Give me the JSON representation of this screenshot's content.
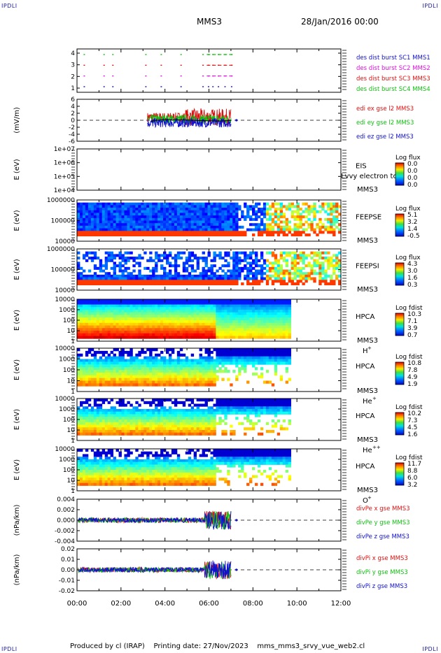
{
  "corners": {
    "tl": "IPDLI",
    "tr": "IPDLI",
    "bl": "IPDLI",
    "br": "IPDLI"
  },
  "header": {
    "spacecraft": "MMS3",
    "date": "28/Jan/2016 00:00"
  },
  "footer": {
    "produced": "Produced by cl (IRAP)",
    "printed": "Printing date: 27/Nov/2023",
    "file": "mms_mms3_srvy_vue_web2.cl"
  },
  "colors": {
    "red": "#e01010",
    "green": "#10c010",
    "blue": "#1010d0",
    "magenta": "#e010e0"
  },
  "chart_data": [
    {
      "type": "scatter",
      "panel": "burst-availability",
      "yticks": [
        "4",
        "3",
        "2",
        "1"
      ],
      "legend": [
        {
          "text": "des dist burst SC1 MMS1",
          "color": "#1010d0"
        },
        {
          "text": "des dist burst SC2 MMS2",
          "color": "#e010e0"
        },
        {
          "text": "des dist burst SC3 MMS3",
          "color": "#e01010"
        },
        {
          "text": "des dist burst SC4 MMS4",
          "color": "#10c010"
        }
      ]
    },
    {
      "type": "line",
      "panel": "edi-e-field",
      "ylabel": "(mV/m)",
      "yticks": [
        "6",
        "4",
        "2",
        "0",
        "-2",
        "-4",
        "-6"
      ],
      "ylim": [
        -6,
        6
      ],
      "legend": [
        {
          "text": "edi ex gse l2 MMS3",
          "color": "#e01010"
        },
        {
          "text": "edi ey gse l2 MMS3",
          "color": "#10c010"
        },
        {
          "text": "edi ez gse l2 MMS3",
          "color": "#1010d0"
        }
      ]
    },
    {
      "type": "heatmap",
      "panel": "eis",
      "ylabel": "E (eV)",
      "yticks": [
        "1e+07",
        "1e+06",
        "1e+05",
        "1e+04"
      ],
      "inst": [
        "EIS",
        "MMS3"
      ],
      "overlay": "Lvvy electron to",
      "cbar_title": "Log flux",
      "cbar_ticks": [
        "0.0",
        "0.0",
        "0.0",
        "0.0"
      ]
    },
    {
      "type": "heatmap",
      "panel": "feeps-electron",
      "ylabel": "E (eV)",
      "yticks": [
        "1000000",
        "100000",
        "10000"
      ],
      "inst": [
        "FEEPSE",
        "MMS3"
      ],
      "cbar_title": "Log flux",
      "cbar_ticks": [
        "5.1",
        "3.2",
        "1.4",
        "-0.5"
      ]
    },
    {
      "type": "heatmap",
      "panel": "feeps-ion",
      "ylabel": "E (eV)",
      "yticks": [
        "1000000",
        "100000",
        "10000"
      ],
      "inst": [
        "FEEPSI",
        "MMS3"
      ],
      "cbar_title": "Log flux",
      "cbar_ticks": [
        "4.3",
        "3.0",
        "1.6",
        "0.3"
      ]
    },
    {
      "type": "heatmap",
      "panel": "hpca-h",
      "ylabel": "E (eV)",
      "yticks": [
        "10000",
        "1000",
        "100",
        "10",
        "1"
      ],
      "inst": [
        "HPCA",
        "MMS3"
      ],
      "species": "H",
      "charge": "+",
      "cbar_title": "Log fdist",
      "cbar_ticks": [
        "10.3",
        "7.1",
        "3.9",
        "0.7"
      ]
    },
    {
      "type": "heatmap",
      "panel": "hpca-he",
      "ylabel": "E (eV)",
      "yticks": [
        "10000",
        "1000",
        "100",
        "10",
        "1"
      ],
      "inst": [
        "HPCA",
        "MMS3"
      ],
      "species": "He",
      "charge": "+",
      "cbar_title": "Log fdist",
      "cbar_ticks": [
        "10.8",
        "7.8",
        "4.9",
        "1.9"
      ]
    },
    {
      "type": "heatmap",
      "panel": "hpca-he2",
      "ylabel": "E (eV)",
      "yticks": [
        "10000",
        "1000",
        "100",
        "10",
        "1"
      ],
      "inst": [
        "HPCA",
        "MMS3"
      ],
      "species": "He",
      "charge": "++",
      "cbar_title": "Log fdist",
      "cbar_ticks": [
        "10.2",
        "7.3",
        "4.5",
        "1.6"
      ]
    },
    {
      "type": "heatmap",
      "panel": "hpca-o",
      "ylabel": "E (eV)",
      "yticks": [
        "10000",
        "1000",
        "100",
        "10",
        "1"
      ],
      "inst": [
        "HPCA",
        "MMS3"
      ],
      "species": "O",
      "charge": "+",
      "cbar_title": "Log fdist",
      "cbar_ticks": [
        "11.7",
        "8.8",
        "6.0",
        "3.2"
      ]
    },
    {
      "type": "line",
      "panel": "divpe",
      "ylabel": "(nPa/km)",
      "yticks": [
        "0.004",
        "0.002",
        "0.000",
        "-0.002",
        "-0.004"
      ],
      "ylim": [
        -0.004,
        0.004
      ],
      "legend": [
        {
          "text": "divPe x gse MMS3",
          "color": "#e01010"
        },
        {
          "text": "divPe y gse MMS3",
          "color": "#10c010"
        },
        {
          "text": "divPe z gse MMS3",
          "color": "#1010d0"
        }
      ]
    },
    {
      "type": "line",
      "panel": "divpi",
      "ylabel": "(nPa/km)",
      "yticks": [
        "0.02",
        "0.01",
        "0.00",
        "-0.01",
        "-0.02"
      ],
      "ylim": [
        -0.02,
        0.02
      ],
      "legend": [
        {
          "text": "divPi x gse MMS3",
          "color": "#e01010"
        },
        {
          "text": "divPi y gse MMS3",
          "color": "#10c010"
        },
        {
          "text": "divPi z gse MMS3",
          "color": "#1010d0"
        }
      ]
    }
  ],
  "x_axis": {
    "ticks": [
      "00:00",
      "02:00",
      "04:00",
      "06:00",
      "08:00",
      "10:00",
      "12:00"
    ],
    "range_hours": [
      0,
      12
    ]
  }
}
